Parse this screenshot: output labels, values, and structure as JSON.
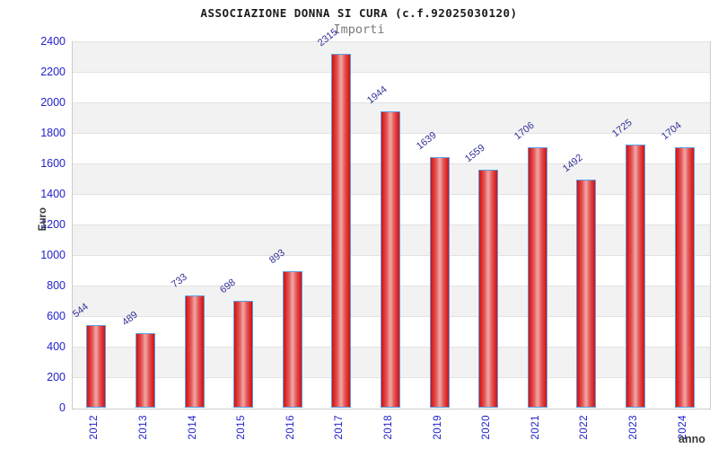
{
  "chart_data": {
    "type": "bar",
    "title": "ASSOCIAZIONE DONNA SI CURA (c.f.92025030120)",
    "subtitle": "Importi",
    "xlabel": "anno",
    "ylabel": "Euro",
    "categories": [
      "2012",
      "2013",
      "2014",
      "2015",
      "2016",
      "2017",
      "2018",
      "2019",
      "2020",
      "2021",
      "2022",
      "2023",
      "2024"
    ],
    "values": [
      544,
      489,
      733,
      698,
      893,
      2315,
      1944,
      1639,
      1559,
      1706,
      1492,
      1725,
      1704
    ],
    "ylim": [
      0,
      2400
    ],
    "ytick_step": 200,
    "grid": "horizontal",
    "legend_position": "none",
    "colors": {
      "bar_edge": "#d40f0f",
      "bar_mid": "#e25252",
      "bar_center": "#f2a8a8",
      "bar_border": "#5b9fe0",
      "value_label": "#333399",
      "tick_label": "#2222cc",
      "band": "#f2f2f2",
      "gridline": "#e2e2e2",
      "plot_border": "#cccccc"
    }
  }
}
